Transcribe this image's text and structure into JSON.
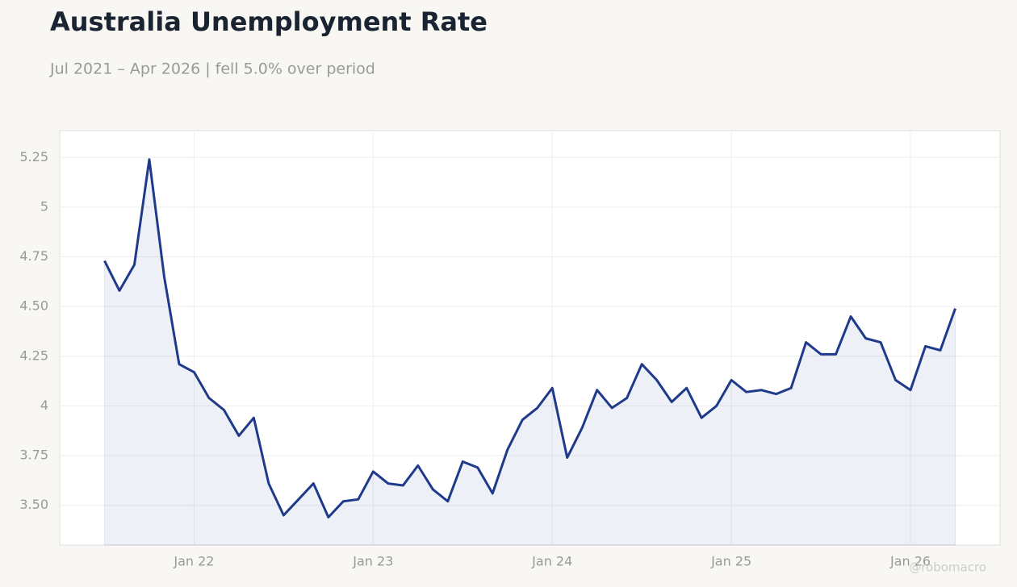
{
  "chart_data": {
    "type": "line",
    "title": "Australia Unemployment Rate",
    "subtitle": "Jul 2021 – Apr 2026 | fell 5.0% over period",
    "watermark": "@robomacro",
    "x": [
      "2021-07",
      "2021-08",
      "2021-09",
      "2021-10",
      "2021-11",
      "2021-12",
      "2022-01",
      "2022-02",
      "2022-03",
      "2022-04",
      "2022-05",
      "2022-06",
      "2022-07",
      "2022-08",
      "2022-09",
      "2022-10",
      "2022-11",
      "2022-12",
      "2023-01",
      "2023-02",
      "2023-03",
      "2023-04",
      "2023-05",
      "2023-06",
      "2023-07",
      "2023-08",
      "2023-09",
      "2023-10",
      "2023-11",
      "2023-12",
      "2024-01",
      "2024-02",
      "2024-03",
      "2024-04",
      "2024-05",
      "2024-06",
      "2024-07",
      "2024-08",
      "2024-09",
      "2024-10",
      "2024-11",
      "2024-12",
      "2025-01",
      "2025-02",
      "2025-03",
      "2025-04",
      "2025-05",
      "2025-06",
      "2025-07",
      "2025-08",
      "2025-09",
      "2025-10",
      "2025-11",
      "2025-12",
      "2026-01",
      "2026-02",
      "2026-03",
      "2026-04"
    ],
    "series": [
      {
        "name": "Unemployment rate",
        "color": "#1f3a8a",
        "values": [
          4.73,
          4.58,
          4.71,
          5.24,
          4.65,
          4.21,
          4.17,
          4.04,
          3.98,
          3.85,
          3.94,
          3.61,
          3.45,
          3.53,
          3.61,
          3.44,
          3.52,
          3.53,
          3.67,
          3.61,
          3.6,
          3.7,
          3.58,
          3.52,
          3.72,
          3.69,
          3.56,
          3.78,
          3.93,
          3.99,
          4.09,
          3.74,
          3.89,
          4.08,
          3.99,
          4.04,
          4.21,
          4.13,
          4.02,
          4.09,
          3.94,
          4.0,
          4.13,
          4.07,
          4.08,
          4.06,
          4.09,
          4.32,
          4.26,
          4.26,
          4.45,
          4.34,
          4.32,
          4.13,
          4.08,
          4.3,
          4.28,
          4.49
        ]
      }
    ],
    "xlim": [
      "2021-04",
      "2026-07"
    ],
    "xticks": [
      {
        "value": "2022-01",
        "label": "Jan 22"
      },
      {
        "value": "2023-01",
        "label": "Jan 23"
      },
      {
        "value": "2024-01",
        "label": "Jan 24"
      },
      {
        "value": "2025-01",
        "label": "Jan 25"
      },
      {
        "value": "2026-01",
        "label": "Jan 26"
      }
    ],
    "ylim": [
      3.3,
      5.385
    ],
    "yticks": [
      {
        "value": 3.5,
        "label": "3.50"
      },
      3.75,
      4,
      4.25,
      {
        "value": 4.5,
        "label": "4.50"
      },
      4.75,
      5,
      5.25
    ],
    "grid": true,
    "area": true
  }
}
